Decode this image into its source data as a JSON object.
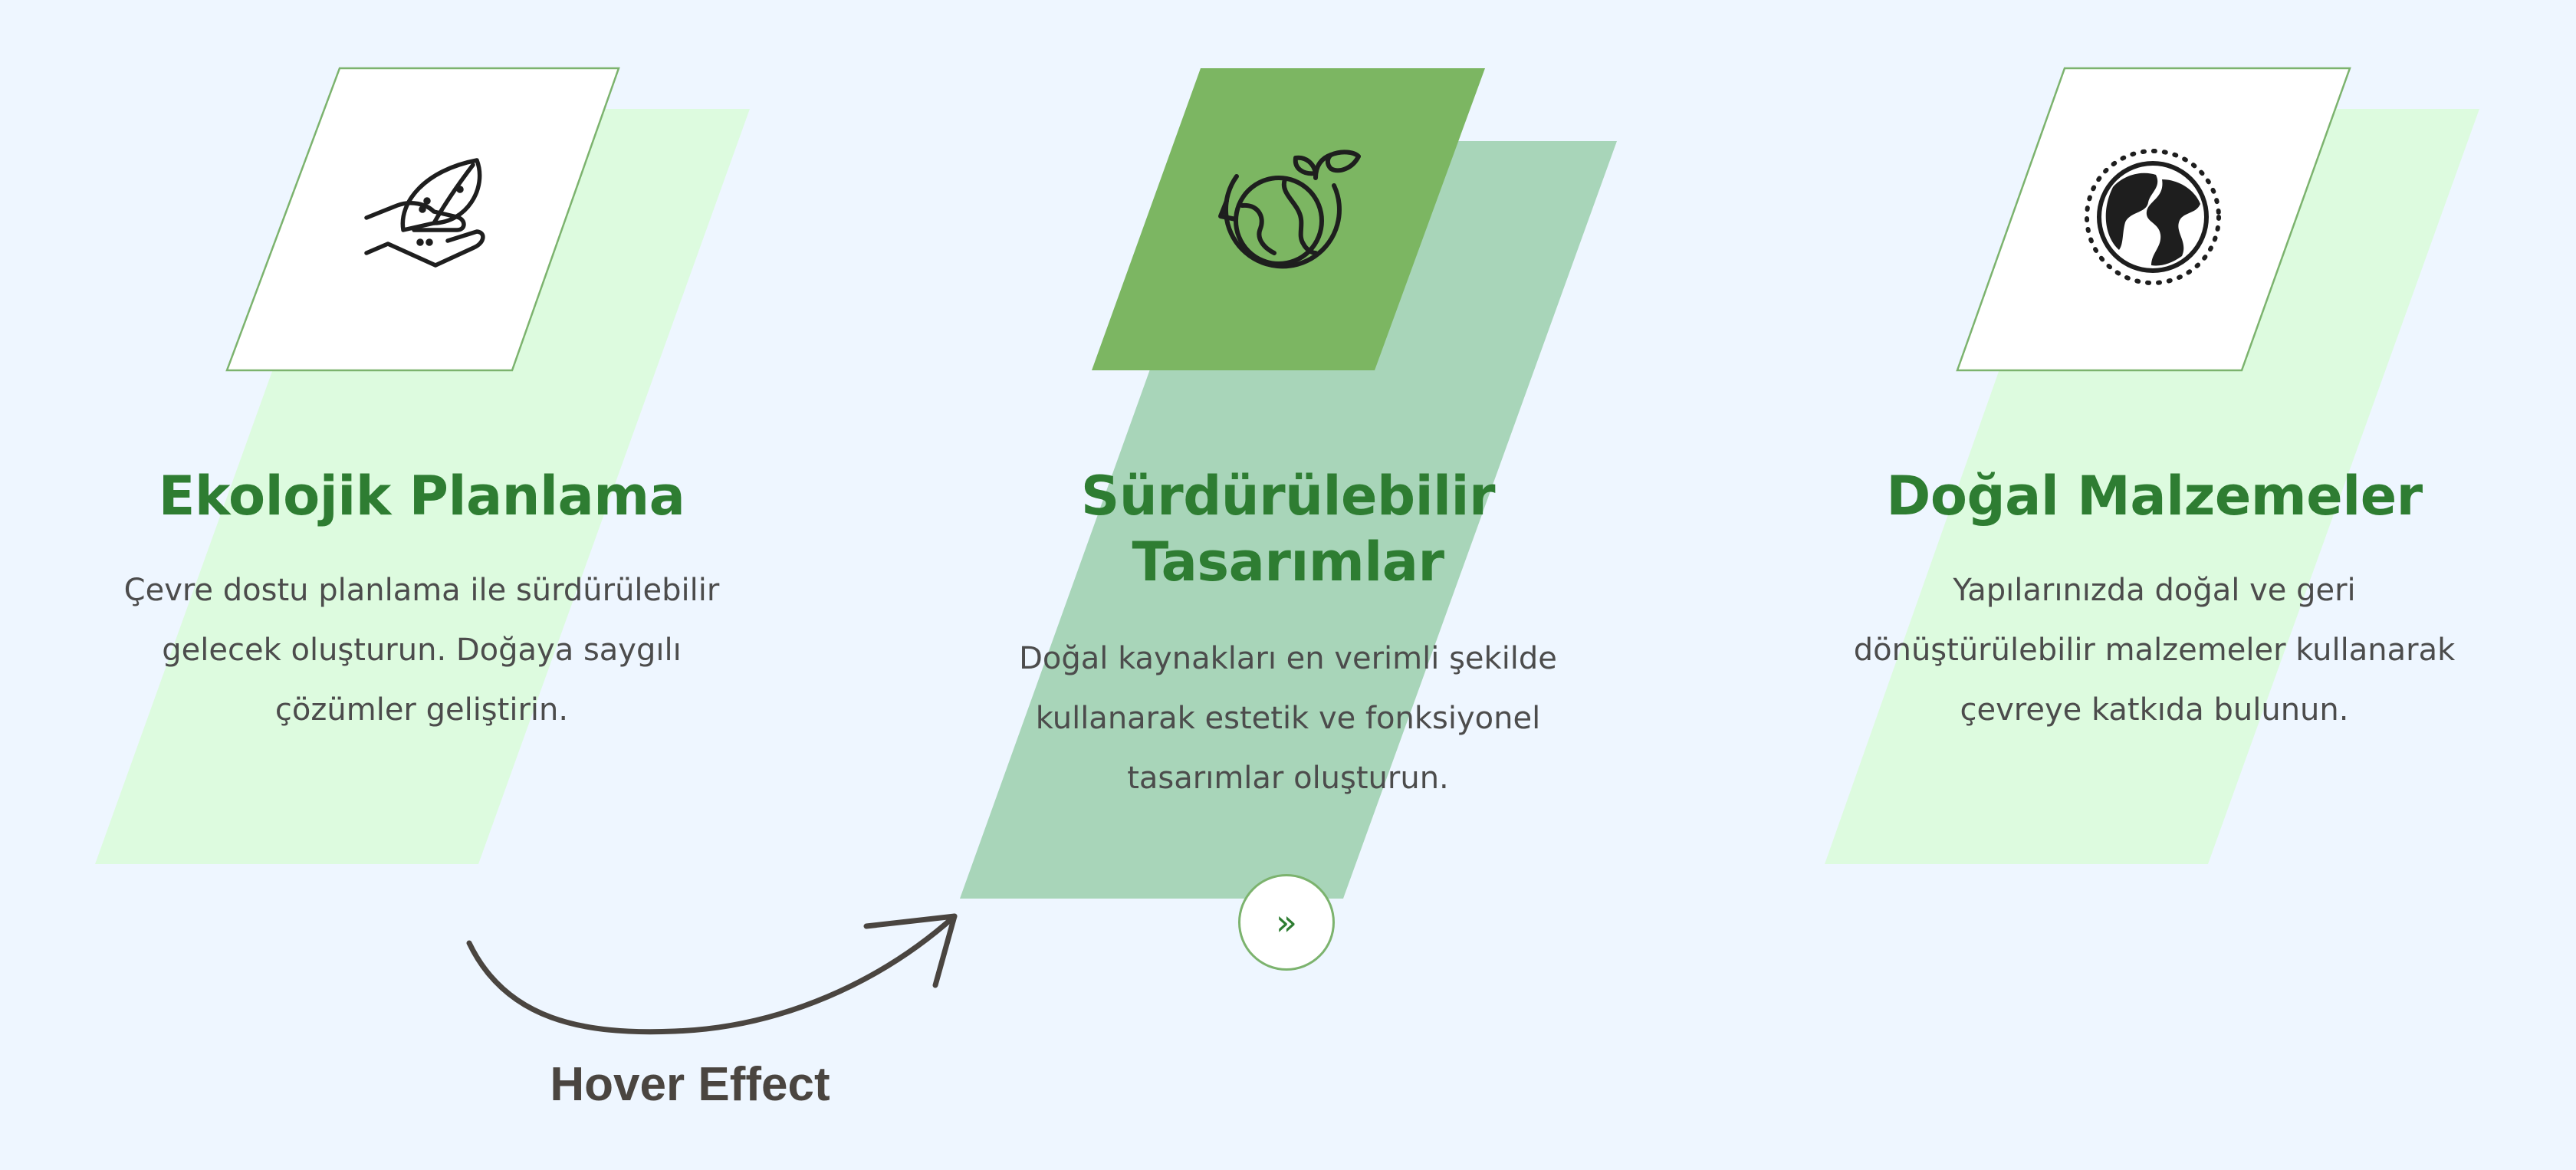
{
  "cards": [
    {
      "title": "Ekolojik Planlama",
      "description": "Çevre dostu planlama ile sürdürülebilir gelecek oluşturun. Doğaya saygılı çözümler geliştirin.",
      "icon": "hand-leaf-icon"
    },
    {
      "title": "Sürdürülebilir Tasarımlar",
      "description": "Doğal kaynakları en verimli şekilde kullanarak estetik ve fonksiyonel tasarımlar oluşturun.",
      "icon": "globe-recycle-sprout-icon",
      "button_label": "»"
    },
    {
      "title": "Doğal Malzemeler",
      "description": "Yapılarınızda doğal ve geri dönüştürülebilir malzemeler kullanarak çevreye katkıda bulunun.",
      "icon": "globe-icon"
    }
  ],
  "annotation": {
    "label": "Hover Effect"
  },
  "colors": {
    "background": "#EEF6FF",
    "light_shape": "#DDFBDF",
    "hover_shape": "#A8D5B9",
    "hover_front": "#7CB662",
    "title": "#2E7D32",
    "text": "#4C4C4C",
    "icon_box_border": "#7CB36E"
  }
}
